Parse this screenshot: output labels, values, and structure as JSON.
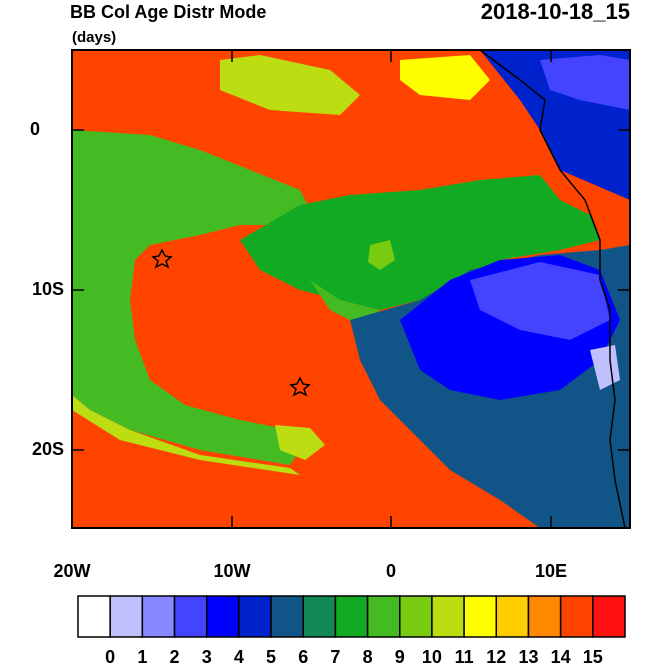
{
  "title": "BB Col Age Distr Mode",
  "units": "(days)",
  "date": "2018-10-18_15",
  "map": {
    "lon_labels": [
      "20W",
      "10W",
      "0",
      "10E"
    ],
    "lat_labels": [
      "0",
      "10S",
      "20S"
    ]
  },
  "colorbar": {
    "levels": [
      0,
      1,
      2,
      3,
      4,
      5,
      6,
      7,
      8,
      9,
      10,
      11,
      12,
      13,
      14,
      15
    ],
    "colors": [
      "#ffffff",
      "#c0c0ff",
      "#8888ff",
      "#4444ff",
      "#0000ff",
      "#0022cc",
      "#115588",
      "#118855",
      "#11aa22",
      "#44bb22",
      "#77cc11",
      "#bbdd11",
      "#ffff00",
      "#ffcc00",
      "#ff8800",
      "#ff4400",
      "#ff1111"
    ]
  }
}
